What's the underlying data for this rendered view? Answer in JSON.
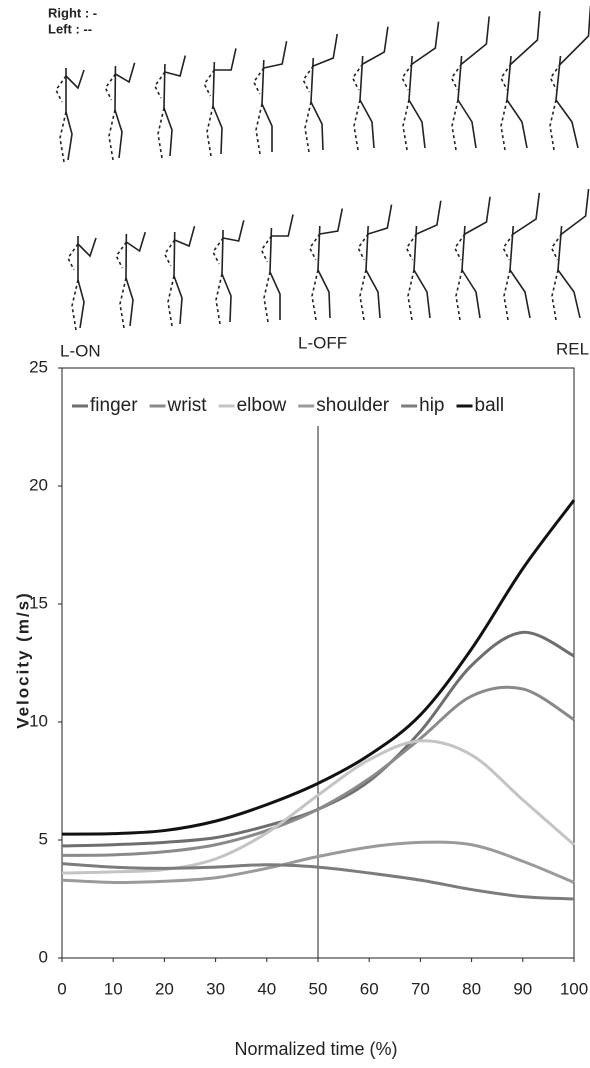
{
  "figure_labels": {
    "right": "Right : -",
    "left": "Left : --",
    "phases": [
      "L-ON",
      "L-OFF",
      "REL"
    ]
  },
  "chart_data": {
    "type": "line",
    "x_label": "Normalized time (%)",
    "y_label": "Velocity (m/s)",
    "x": [
      0,
      10,
      20,
      30,
      40,
      50,
      60,
      70,
      80,
      90,
      100
    ],
    "series": [
      {
        "name": "finger",
        "color": "#6e6e6e",
        "values": [
          4.75,
          4.8,
          4.9,
          5.1,
          5.6,
          6.3,
          7.5,
          9.6,
          12.4,
          13.8,
          12.8
        ]
      },
      {
        "name": "wrist",
        "color": "#8a8a8a",
        "values": [
          4.35,
          4.37,
          4.5,
          4.8,
          5.4,
          6.3,
          7.6,
          9.3,
          11.1,
          11.4,
          10.1
        ]
      },
      {
        "name": "elbow",
        "color": "#c4c4c4",
        "values": [
          3.6,
          3.65,
          3.75,
          4.2,
          5.3,
          6.9,
          8.4,
          9.2,
          8.6,
          6.7,
          4.8
        ]
      },
      {
        "name": "shoulder",
        "color": "#9a9a9a",
        "values": [
          3.3,
          3.2,
          3.25,
          3.4,
          3.8,
          4.3,
          4.7,
          4.9,
          4.8,
          4.1,
          3.2
        ]
      },
      {
        "name": "hip",
        "color": "#7c7c7c",
        "values": [
          4.0,
          3.85,
          3.8,
          3.85,
          3.95,
          3.85,
          3.6,
          3.3,
          2.9,
          2.6,
          2.5
        ]
      },
      {
        "name": "ball",
        "color": "#111111",
        "values": [
          5.25,
          5.27,
          5.4,
          5.8,
          6.5,
          7.4,
          8.6,
          10.3,
          13.1,
          16.5,
          19.4
        ]
      }
    ],
    "xlim": [
      0,
      100
    ],
    "xticks": [
      0,
      10,
      20,
      30,
      40,
      50,
      60,
      70,
      80,
      90,
      100
    ],
    "ylim": [
      0,
      25
    ],
    "yticks": [
      0,
      5,
      10,
      15,
      20,
      25
    ],
    "vline": 50,
    "legend": "top"
  }
}
